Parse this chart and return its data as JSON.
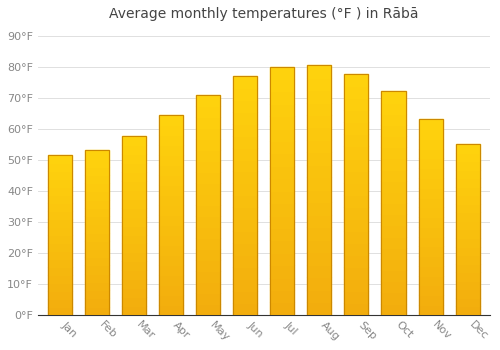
{
  "title": "Average monthly temperatures (°F ) in Rābā",
  "months": [
    "Jan",
    "Feb",
    "Mar",
    "Apr",
    "May",
    "Jun",
    "Jul",
    "Aug",
    "Sep",
    "Oct",
    "Nov",
    "Dec"
  ],
  "values": [
    51.5,
    53,
    57.5,
    64.5,
    71,
    77,
    80,
    80.5,
    77.5,
    72,
    63,
    55
  ],
  "bar_color_top": "#FFB733",
  "bar_color_bottom": "#F5A623",
  "bar_edge_color": "#CC8800",
  "background_color": "#FFFFFF",
  "plot_bg_color": "#F5F5F5",
  "grid_color": "#E0E0E0",
  "yticks": [
    0,
    10,
    20,
    30,
    40,
    50,
    60,
    70,
    80,
    90
  ],
  "ylim": [
    0,
    93
  ],
  "title_fontsize": 10,
  "tick_fontsize": 8,
  "tick_color": "#888888",
  "title_color": "#444444",
  "bar_width": 0.65,
  "label_rotation": -45,
  "label_ha": "left"
}
